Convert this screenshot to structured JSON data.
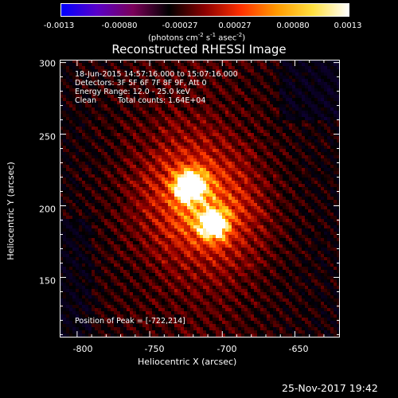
{
  "colorbar": {
    "ticks": [
      "-0.0013",
      "-0.00080",
      "-0.00027",
      "0.00027",
      "0.00080",
      "0.0013"
    ],
    "units_label": "(photons cm",
    "units_exp1": "-2",
    "units_mid": " s",
    "units_exp2": "-1",
    "units_mid2": " asec",
    "units_exp3": "-2",
    "units_end": ")",
    "colors": [
      "#0000ff",
      "#5a00c8",
      "#7a0058",
      "#000000",
      "#8c0000",
      "#ff3000",
      "#ff9a00",
      "#ffe040",
      "#ffffff"
    ]
  },
  "chart_data": {
    "type": "heatmap",
    "title": "Reconstructed RHESSI Image",
    "xlabel": "Heliocentric X (arcsec)",
    "ylabel": "Heliocentric Y (arcsec)",
    "xlim": [
      -812,
      -619
    ],
    "ylim": [
      108,
      302
    ],
    "x_ticks": [
      "-800",
      "-750",
      "-700",
      "-650"
    ],
    "x_tick_values": [
      -800,
      -750,
      -700,
      -650
    ],
    "y_ticks": [
      "300",
      "250",
      "200",
      "150"
    ],
    "y_tick_values": [
      300,
      250,
      200,
      150
    ],
    "sources": [
      {
        "x": -722,
        "y": 214,
        "peak": 0.0013
      },
      {
        "x": -706,
        "y": 187,
        "peak": 0.0011
      }
    ],
    "value_range": [
      -0.0013,
      0.0013
    ],
    "annotations": {
      "time_range": "18-Jun-2015 14:57:16.000 to 15:07:16.000",
      "detectors": "Detectors: 3F 5F 6F 7F 8F 9F, Att 0",
      "energy": "Energy Range: 12.0 - 25.0 keV",
      "clean": "Clean",
      "counts": "Total counts: 1.64E+04",
      "peak": "Position of Peak = [-722,214]"
    }
  },
  "footer": "25-Nov-2017 19:42"
}
